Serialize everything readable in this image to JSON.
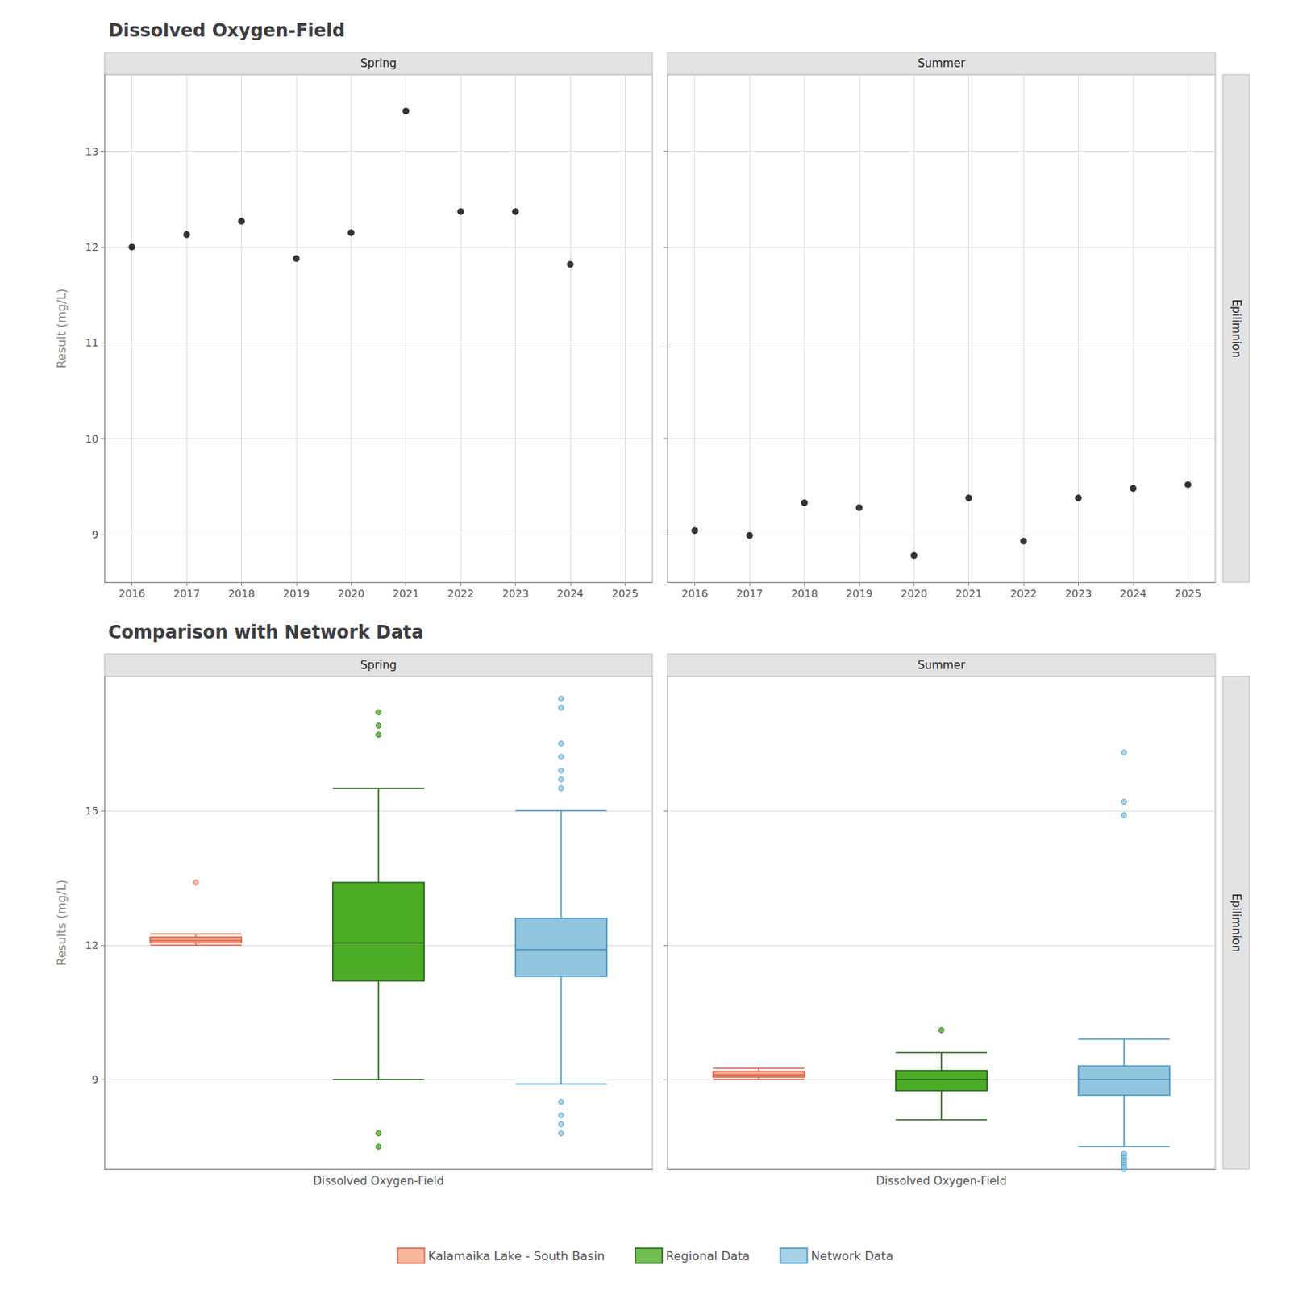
{
  "chart_data": [
    {
      "type": "scatter",
      "title": "Dissolved Oxygen-Field",
      "ylabel": "Result (mg/L)",
      "strip_label": "Epilimnion",
      "color": "black",
      "xlim": [
        2015.5,
        2025.5
      ],
      "xticks": [
        2016,
        2017,
        2018,
        2019,
        2020,
        2021,
        2022,
        2023,
        2024,
        2025
      ],
      "ylim": [
        8.5,
        13.8
      ],
      "yticks": [
        9,
        10,
        11,
        12,
        13
      ],
      "grid": true,
      "facets": [
        {
          "label": "Spring",
          "x": [
            2016,
            2017,
            2018,
            2019,
            2020,
            2021,
            2022,
            2023,
            2024
          ],
          "values": [
            12.0,
            12.13,
            12.27,
            11.88,
            12.15,
            13.42,
            12.37,
            12.37,
            11.82
          ]
        },
        {
          "label": "Summer",
          "x": [
            2016,
            2017,
            2018,
            2019,
            2020,
            2021,
            2022,
            2023,
            2024,
            2025
          ],
          "values": [
            9.04,
            8.99,
            9.33,
            9.28,
            8.78,
            9.38,
            8.93,
            9.38,
            9.48,
            9.52
          ]
        }
      ]
    },
    {
      "type": "boxplot",
      "title": "Comparison with Network Data",
      "ylabel": "Results (mg/L)",
      "strip_label": "Epilimnion",
      "categories": [
        null,
        "Dissolved Oxygen-Field",
        null
      ],
      "ylim": [
        7.0,
        18.0
      ],
      "yticks": [
        9,
        12,
        15
      ],
      "grid": "y",
      "legend": "bottom",
      "series": [
        {
          "name": "Kalamaika Lake - South Basin",
          "color": "#f4a582",
          "edge_color": "#d6604d"
        },
        {
          "name": "Regional Data",
          "color": "#4dac26",
          "edge_color": "#276419"
        },
        {
          "name": "Network Data",
          "color": "#92c5de",
          "edge_color": "#4393c3"
        }
      ],
      "facets": [
        {
          "label": "Spring",
          "boxes": [
            {
              "whisker_low": 12.0,
              "q1": 12.05,
              "median": 12.1,
              "q3": 12.18,
              "whisker_high": 12.25,
              "fliers": [
                13.4
              ]
            },
            {
              "whisker_low": 9.0,
              "q1": 11.2,
              "median": 12.05,
              "q3": 13.4,
              "whisker_high": 15.5,
              "fliers": [
                16.7,
                16.9,
                17.2,
                7.5,
                7.8
              ]
            },
            {
              "whisker_low": 8.9,
              "q1": 11.3,
              "median": 11.9,
              "q3": 12.6,
              "whisker_high": 15.0,
              "fliers": [
                15.5,
                15.7,
                15.9,
                16.2,
                16.5,
                17.3,
                17.5,
                7.8,
                8.0,
                8.2,
                8.5
              ]
            }
          ]
        },
        {
          "label": "Summer",
          "boxes": [
            {
              "whisker_low": 9.0,
              "q1": 9.05,
              "median": 9.1,
              "q3": 9.18,
              "whisker_high": 9.25,
              "fliers": []
            },
            {
              "whisker_low": 8.1,
              "q1": 8.75,
              "median": 9.0,
              "q3": 9.2,
              "whisker_high": 9.6,
              "fliers": [
                10.1
              ]
            },
            {
              "whisker_low": 7.5,
              "q1": 8.65,
              "median": 9.0,
              "q3": 9.3,
              "whisker_high": 9.9,
              "fliers": [
                14.9,
                15.2,
                16.3,
                7.0,
                7.05,
                7.1,
                7.15,
                7.2,
                7.25,
                7.3,
                7.35
              ]
            }
          ]
        }
      ]
    }
  ]
}
